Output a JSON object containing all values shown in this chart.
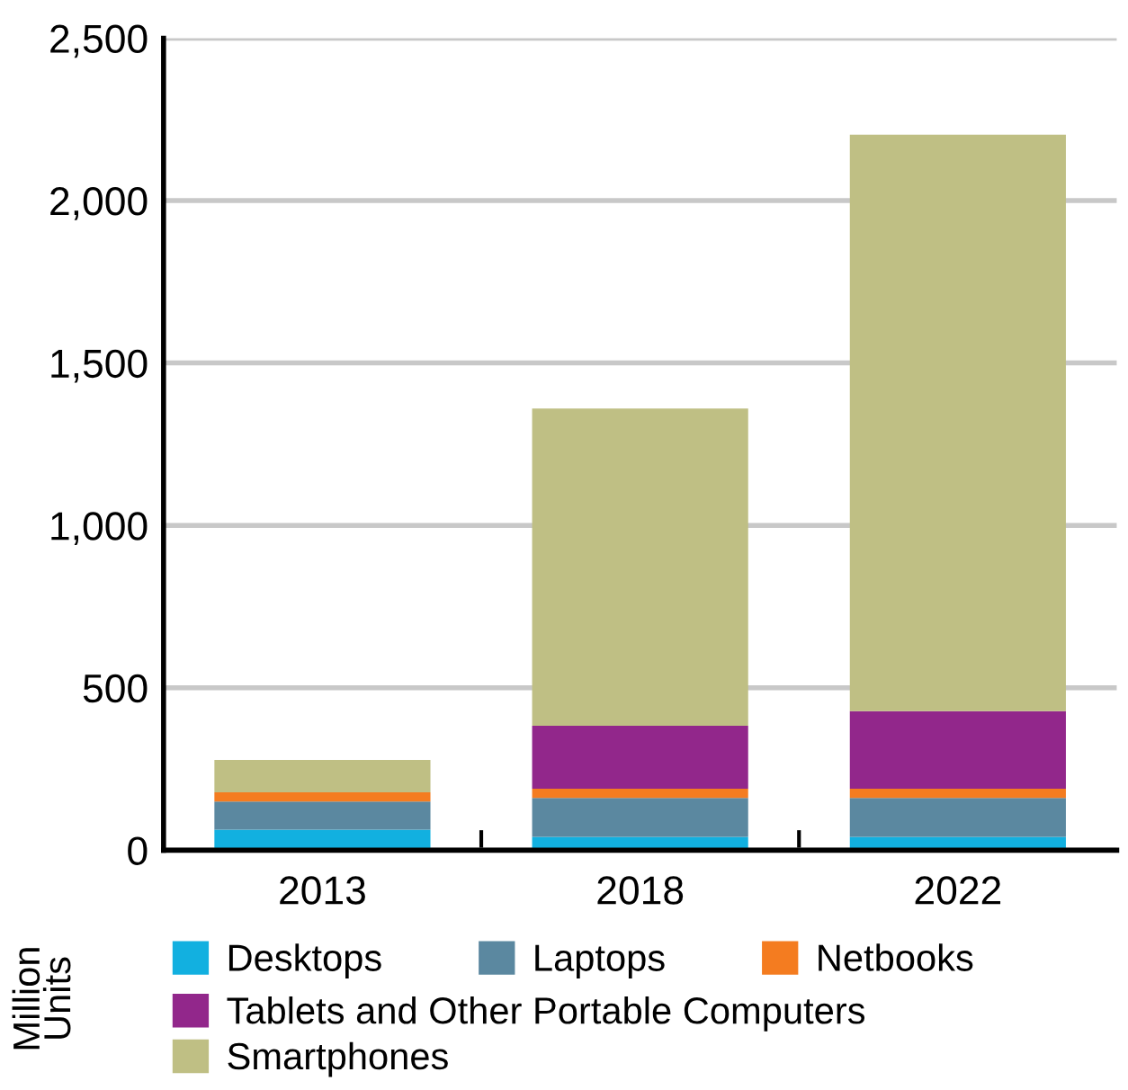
{
  "chart_data": {
    "type": "bar",
    "stacked": true,
    "ylabel": "Million Units",
    "categories": [
      "2013",
      "2018",
      "2022"
    ],
    "series": [
      {
        "name": "Desktops",
        "color": "#12b0e0",
        "values": [
          63,
          41,
          41
        ]
      },
      {
        "name": "Laptops",
        "color": "#5b88a0",
        "values": [
          87,
          120,
          120
        ]
      },
      {
        "name": "Netbooks",
        "color": "#f47c20",
        "values": [
          28,
          28,
          28
        ]
      },
      {
        "name": "Tablets and Other Portable Computers",
        "color": "#92278b",
        "values": [
          0,
          194,
          239
        ]
      },
      {
        "name": "Smartphones",
        "color": "#bfbf84",
        "values": [
          100,
          977,
          1775
        ]
      }
    ],
    "ylim": [
      0,
      2500
    ],
    "yticks": [
      {
        "value": 0,
        "label": "0"
      },
      {
        "value": 500,
        "label": "500"
      },
      {
        "value": 1000,
        "label": "1,000"
      },
      {
        "value": 1500,
        "label": "1,500"
      },
      {
        "value": 2000,
        "label": "2,000"
      },
      {
        "value": 2500,
        "label": "2,500"
      }
    ],
    "grid": "y",
    "legend": "bottom"
  }
}
